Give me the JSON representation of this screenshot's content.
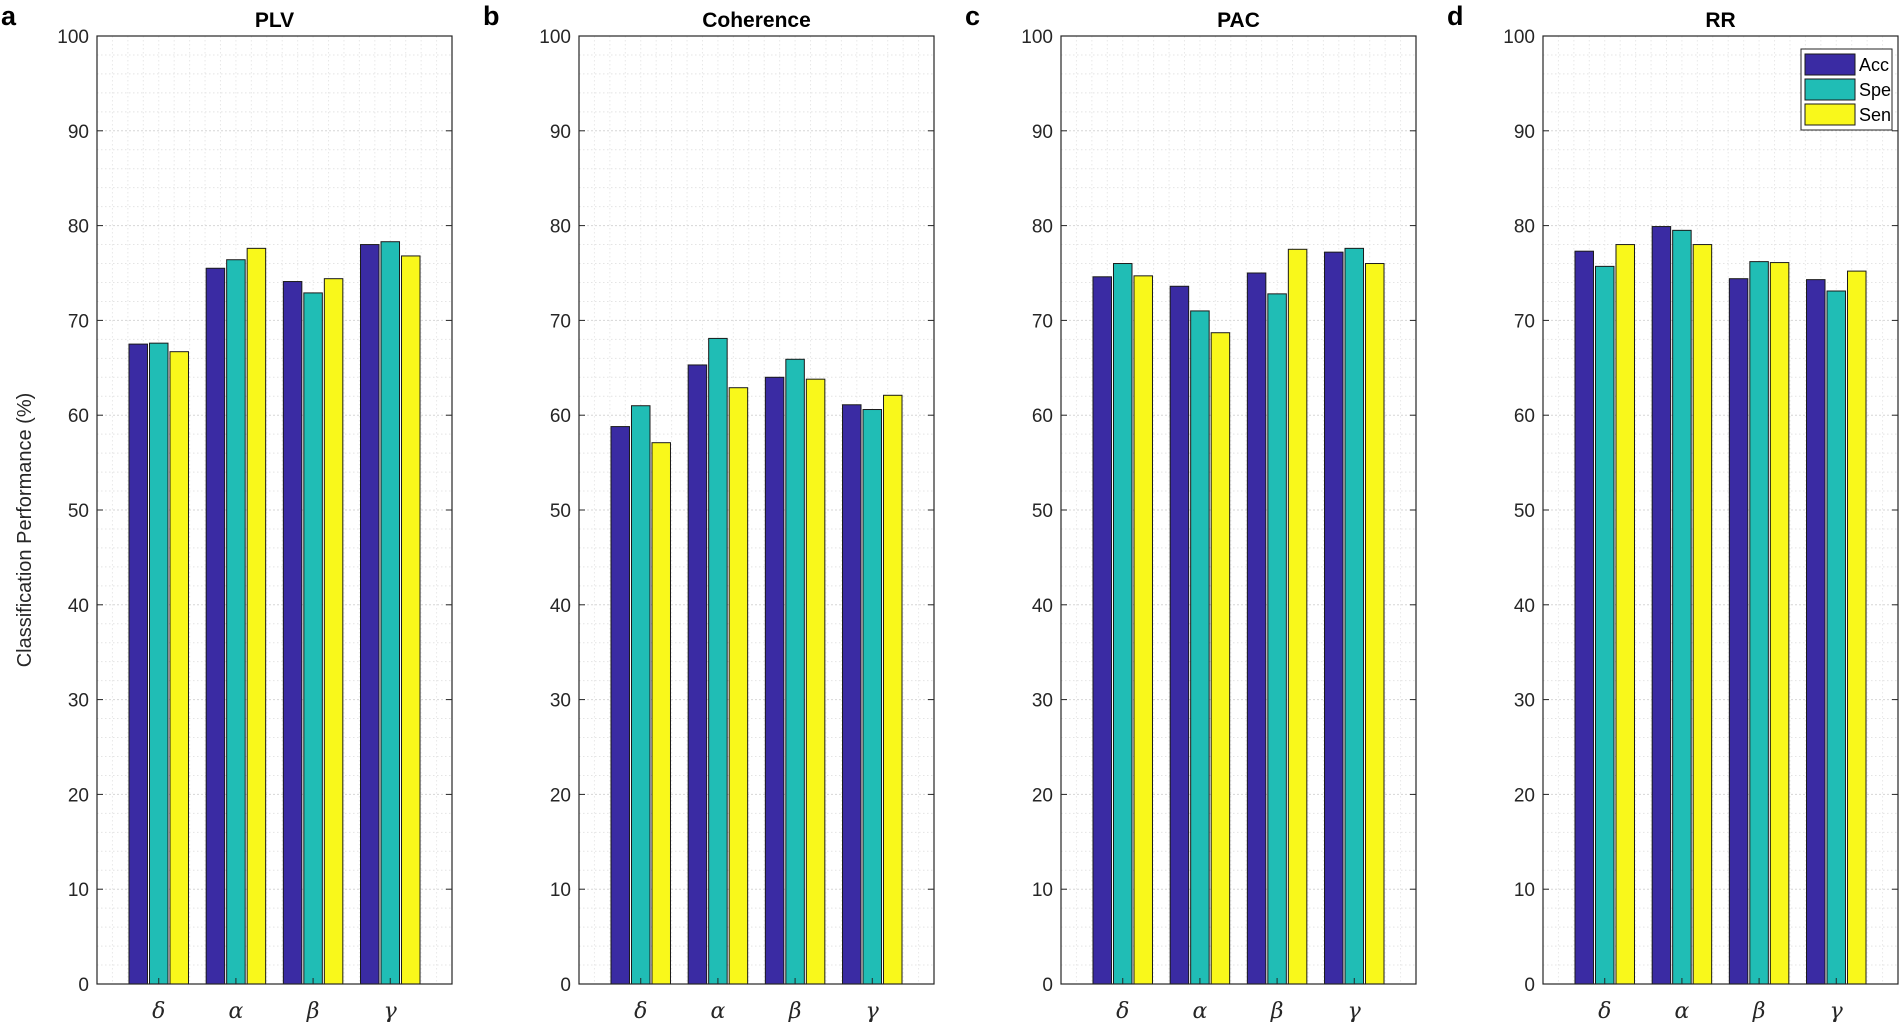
{
  "colors": {
    "Acc": "#3a2ba3",
    "Spe": "#20bdb5",
    "Sen": "#f9f81b"
  },
  "ylabel": "Classification Performance (%)",
  "chart_data": [
    {
      "type": "bar",
      "letter": "a",
      "title": "PLV",
      "categories": [
        "δ",
        "α",
        "β",
        "γ"
      ],
      "ylim": [
        0,
        100
      ],
      "yticks": [
        0,
        10,
        20,
        30,
        40,
        50,
        60,
        70,
        80,
        90,
        100
      ],
      "ylabel": "Classification Performance (%)",
      "grid": true,
      "legend": false,
      "series": [
        {
          "name": "Acc",
          "values": [
            67.5,
            75.5,
            74.1,
            78.0
          ]
        },
        {
          "name": "Spe",
          "values": [
            67.6,
            76.4,
            72.9,
            78.3
          ]
        },
        {
          "name": "Sen",
          "values": [
            66.7,
            77.6,
            74.4,
            76.8
          ]
        }
      ]
    },
    {
      "type": "bar",
      "letter": "b",
      "title": "Coherence",
      "categories": [
        "δ",
        "α",
        "β",
        "γ"
      ],
      "ylim": [
        0,
        100
      ],
      "yticks": [
        0,
        10,
        20,
        30,
        40,
        50,
        60,
        70,
        80,
        90,
        100
      ],
      "grid": true,
      "legend": false,
      "series": [
        {
          "name": "Acc",
          "values": [
            58.8,
            65.3,
            64.0,
            61.1
          ]
        },
        {
          "name": "Spe",
          "values": [
            61.0,
            68.1,
            65.9,
            60.6
          ]
        },
        {
          "name": "Sen",
          "values": [
            57.1,
            62.9,
            63.8,
            62.1
          ]
        }
      ]
    },
    {
      "type": "bar",
      "letter": "c",
      "title": "PAC",
      "categories": [
        "δ",
        "α",
        "β",
        "γ"
      ],
      "ylim": [
        0,
        100
      ],
      "yticks": [
        0,
        10,
        20,
        30,
        40,
        50,
        60,
        70,
        80,
        90,
        100
      ],
      "grid": true,
      "legend": false,
      "series": [
        {
          "name": "Acc",
          "values": [
            74.6,
            73.6,
            75.0,
            77.2
          ]
        },
        {
          "name": "Spe",
          "values": [
            76.0,
            71.0,
            72.8,
            77.6
          ]
        },
        {
          "name": "Sen",
          "values": [
            74.7,
            68.7,
            77.5,
            76.0
          ]
        }
      ]
    },
    {
      "type": "bar",
      "letter": "d",
      "title": "RR",
      "categories": [
        "δ",
        "α",
        "β",
        "γ"
      ],
      "ylim": [
        0,
        100
      ],
      "yticks": [
        0,
        10,
        20,
        30,
        40,
        50,
        60,
        70,
        80,
        90,
        100
      ],
      "grid": true,
      "legend": true,
      "legend_location": "top-right",
      "legend_entries": [
        "Acc",
        "Spe",
        "Sen"
      ],
      "series": [
        {
          "name": "Acc",
          "values": [
            77.3,
            79.9,
            74.4,
            74.3
          ]
        },
        {
          "name": "Spe",
          "values": [
            75.7,
            79.5,
            76.2,
            73.1
          ]
        },
        {
          "name": "Sen",
          "values": [
            78.0,
            78.0,
            76.1,
            75.2
          ]
        }
      ]
    }
  ]
}
